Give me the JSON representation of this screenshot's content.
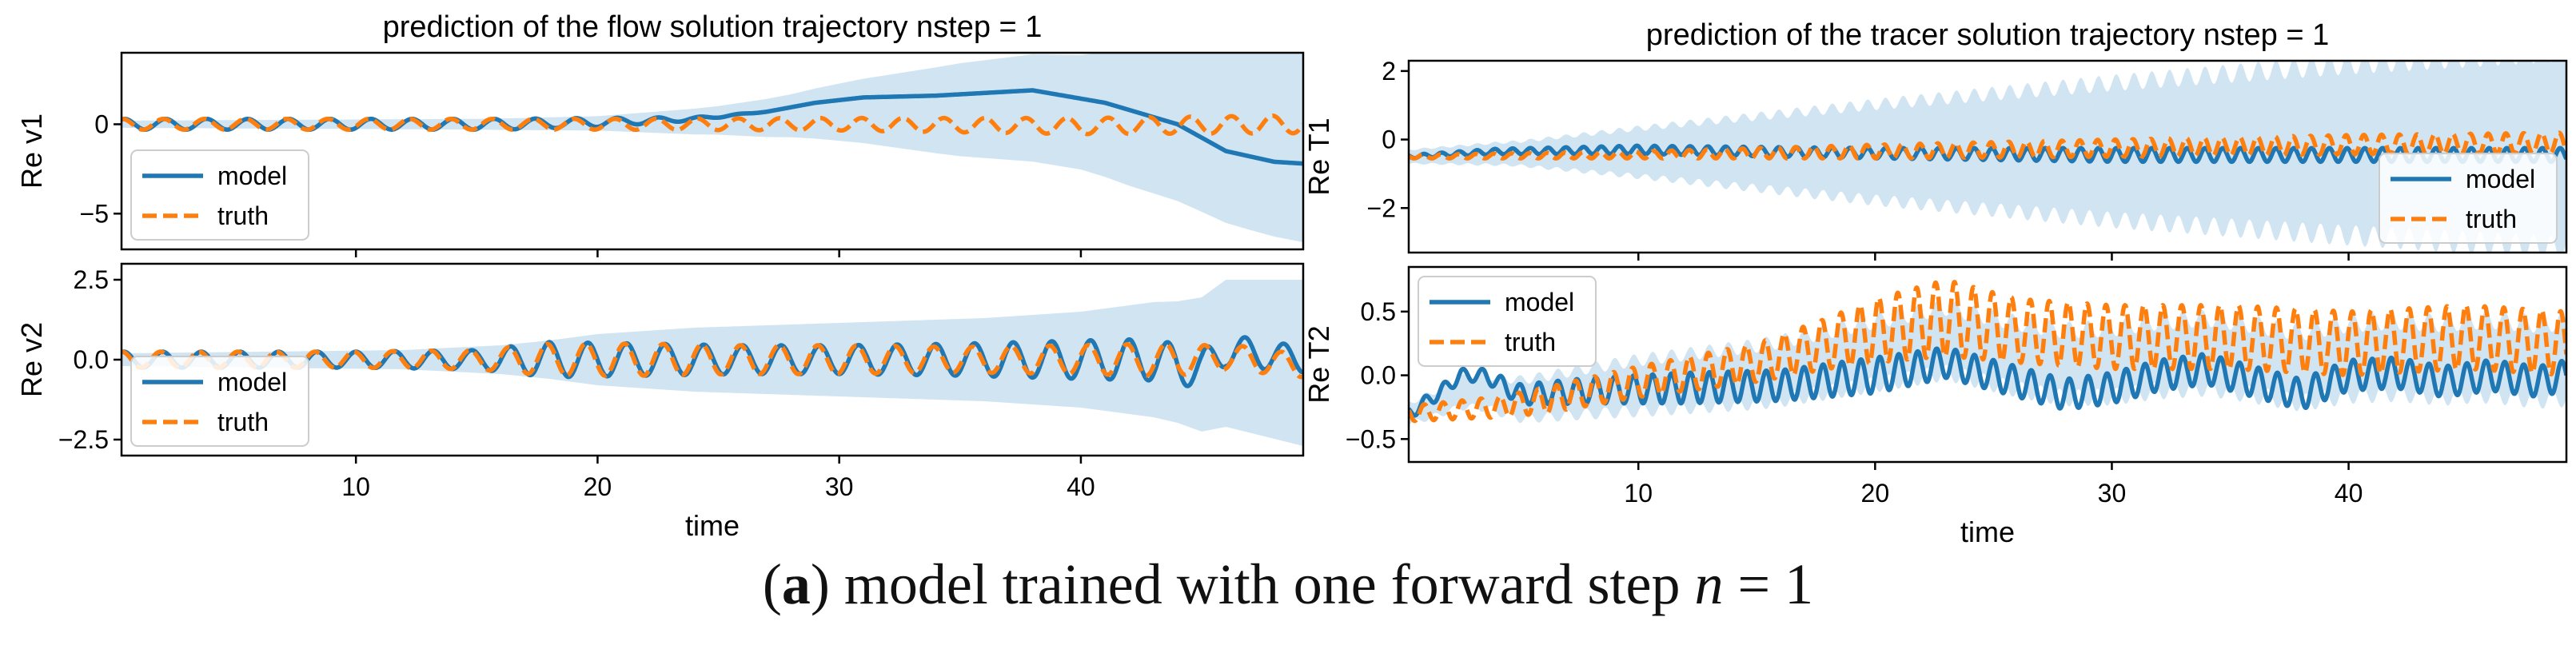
{
  "caption": {
    "open": "(",
    "label": "a",
    "close": ")",
    "text": " model trained with one forward step ",
    "var": "n",
    "eq": " = 1"
  },
  "colors": {
    "model": "#1f77b4",
    "truth": "#ff7f0e",
    "band": "#c9dff0"
  },
  "chart_data": [
    {
      "type": "line",
      "title": "prediction of the flow solution trajectory  nstep = 1",
      "xlabel": "",
      "ylabel": "Re v1",
      "xlim": [
        0.3,
        49.2
      ],
      "ylim": [
        -7.0,
        4.0
      ],
      "xticks": [
        10,
        20,
        30,
        40
      ],
      "xtick_labels_visible": false,
      "yticks": [
        -5,
        0
      ],
      "ytick_labels": [
        "−5",
        "0"
      ],
      "legend": {
        "placement": "lower-left",
        "entries": [
          "model",
          "truth"
        ]
      },
      "series": [
        {
          "name": "model",
          "style": "solid",
          "x": [
            0.3,
            4,
            8,
            12,
            16,
            20,
            24,
            27,
            29,
            31,
            34,
            38,
            41,
            44,
            46,
            48,
            49.2
          ],
          "y": [
            0,
            0,
            0,
            0,
            0,
            0.1,
            0.3,
            0.7,
            1.2,
            1.5,
            1.6,
            1.9,
            1.2,
            0,
            -1.5,
            -2.1,
            -2.2
          ],
          "osc": {
            "amp": [
              0.3,
              0.3,
              0.3,
              0.3,
              0.3,
              0.25,
              0.1,
              0,
              0,
              0,
              0,
              0,
              0,
              0,
              0,
              0,
              0
            ],
            "period": 1.7
          }
        },
        {
          "name": "truth",
          "style": "dashed",
          "x": [
            0.3,
            10,
            20,
            30,
            40,
            49.2
          ],
          "y": [
            0,
            0,
            0,
            0,
            -0.1,
            0
          ],
          "osc": {
            "amp": [
              0.3,
              0.3,
              0.3,
              0.35,
              0.45,
              0.5
            ],
            "period": 1.7
          }
        }
      ],
      "band": {
        "x": [
          0.3,
          15,
          20,
          25,
          28,
          30,
          32,
          35,
          38,
          40,
          42,
          45,
          47,
          49.2
        ],
        "halfwidth": [
          0.2,
          0.3,
          0.4,
          0.8,
          1.2,
          1.6,
          2.0,
          2.6,
          3.0,
          3.2,
          3.8,
          4.5,
          5.0,
          5.5
        ]
      }
    },
    {
      "type": "line",
      "title": "",
      "xlabel": "time",
      "ylabel": "Re v2",
      "xlim": [
        0.3,
        49.2
      ],
      "ylim": [
        -3.0,
        3.0
      ],
      "xticks": [
        10,
        20,
        30,
        40
      ],
      "xtick_labels": [
        "10",
        "20",
        "30",
        "40"
      ],
      "yticks": [
        -2.5,
        0.0,
        2.5
      ],
      "ytick_labels": [
        "−2.5",
        "0.0",
        "2.5"
      ],
      "legend": {
        "placement": "lower-left",
        "entries": [
          "model",
          "truth"
        ]
      },
      "series": [
        {
          "name": "model",
          "style": "solid",
          "x": [
            0.3,
            10,
            15,
            18,
            22,
            26,
            30,
            35,
            40,
            43,
            45,
            46,
            49.2
          ],
          "y": [
            0,
            0,
            0,
            0,
            0,
            0,
            0,
            0,
            0,
            0,
            -0.3,
            0.3,
            0
          ],
          "osc": {
            "amp": [
              0.25,
              0.25,
              0.3,
              0.55,
              0.5,
              0.45,
              0.45,
              0.5,
              0.6,
              0.65,
              0.6,
              0.5,
              0.4
            ],
            "period": 1.6
          }
        },
        {
          "name": "truth",
          "style": "dashed",
          "x": [
            0.3,
            10,
            15,
            18,
            22,
            26,
            30,
            35,
            40,
            43,
            45,
            46,
            49.2
          ],
          "y": [
            0,
            0,
            0,
            0,
            0,
            0,
            0,
            0,
            0,
            0,
            0,
            0.1,
            -0.2
          ],
          "osc": {
            "amp": [
              0.25,
              0.25,
              0.3,
              0.5,
              0.5,
              0.45,
              0.45,
              0.4,
              0.45,
              0.5,
              0.45,
              0.4,
              0.35
            ],
            "period": 1.6
          }
        }
      ],
      "band": {
        "x": [
          0.3,
          12,
          16,
          18,
          20,
          24,
          28,
          32,
          36,
          40,
          44,
          46,
          49.2
        ],
        "halfwidth": [
          0.2,
          0.3,
          0.45,
          0.6,
          0.8,
          1.0,
          1.1,
          1.2,
          1.3,
          1.5,
          1.9,
          2.3,
          2.6
        ]
      }
    },
    {
      "type": "line",
      "title": "prediction of the tracer solution trajectory  nstep = 1",
      "xlabel": "",
      "ylabel": "Re T1",
      "xlim": [
        0.3,
        49.2
      ],
      "ylim": [
        -3.3,
        2.3
      ],
      "xticks": [
        10,
        20,
        30,
        40
      ],
      "xtick_labels_visible": false,
      "yticks": [
        -2,
        0,
        2
      ],
      "ytick_labels": [
        "−2",
        "0",
        "2"
      ],
      "legend": {
        "placement": "lower-right",
        "entries": [
          "model",
          "truth"
        ]
      },
      "series": [
        {
          "name": "model",
          "style": "solid",
          "x": [
            0.3,
            4,
            10,
            20,
            30,
            40,
            49.2
          ],
          "y": [
            -0.5,
            -0.35,
            -0.3,
            -0.4,
            -0.45,
            -0.45,
            -0.45
          ],
          "osc": {
            "amp": [
              0.05,
              0.08,
              0.12,
              0.15,
              0.2,
              0.2,
              0.2
            ],
            "period": 0.75
          }
        },
        {
          "name": "truth",
          "style": "dashed",
          "x": [
            0.3,
            10,
            20,
            30,
            40,
            49.2
          ],
          "y": [
            -0.5,
            -0.45,
            -0.35,
            -0.25,
            -0.15,
            -0.1
          ],
          "osc": {
            "amp": [
              0.05,
              0.1,
              0.2,
              0.25,
              0.28,
              0.3
            ],
            "period": 0.75
          }
        }
      ],
      "band": {
        "x": [
          0.3,
          5,
          10,
          20,
          30,
          40,
          49.2
        ],
        "halfwidth": [
          0.2,
          0.35,
          0.7,
          1.4,
          2.0,
          2.5,
          2.9
        ],
        "osc_frac": 0.12,
        "period": 0.75
      }
    },
    {
      "type": "line",
      "title": "",
      "xlabel": "time",
      "ylabel": "Re T2",
      "xlim": [
        0.3,
        49.2
      ],
      "ylim": [
        -0.68,
        0.85
      ],
      "xticks": [
        10,
        20,
        30,
        40
      ],
      "xtick_labels": [
        "10",
        "20",
        "30",
        "40"
      ],
      "yticks": [
        -0.5,
        0.0,
        0.5
      ],
      "ytick_labels": [
        "−0.5",
        "0.0",
        "0.5"
      ],
      "legend": {
        "placement": "upper-left",
        "entries": [
          "model",
          "truth"
        ]
      },
      "series": [
        {
          "name": "model",
          "style": "solid",
          "x": [
            0.3,
            1.5,
            2.5,
            3.5,
            5,
            8,
            12,
            16,
            20,
            23,
            26,
            28,
            30,
            32,
            34,
            36,
            38,
            40,
            42,
            44,
            46,
            48,
            49.2
          ],
          "y": [
            -0.3,
            -0.15,
            0,
            0,
            -0.15,
            -0.12,
            -0.1,
            -0.08,
            0,
            0.1,
            -0.05,
            -0.15,
            -0.1,
            0,
            0.05,
            -0.05,
            -0.15,
            0,
            0.02,
            -0.05,
            0,
            -0.05,
            0
          ],
          "osc": {
            "amp": [
              0.05,
              0.05,
              0.05,
              0.05,
              0.08,
              0.1,
              0.12,
              0.12,
              0.14,
              0.12,
              0.12,
              0.12,
              0.12,
              0.12,
              0.12,
              0.12,
              0.12,
              0.12,
              0.12,
              0.12,
              0.12,
              0.12,
              0.12
            ],
            "period": 0.8
          }
        },
        {
          "name": "truth",
          "style": "dashed",
          "x": [
            0.3,
            4,
            6,
            10,
            15,
            18,
            20,
            23,
            26,
            30,
            35,
            40,
            45,
            49.2
          ],
          "y": [
            -0.3,
            -0.25,
            -0.2,
            -0.05,
            0.1,
            0.25,
            0.35,
            0.45,
            0.35,
            0.3,
            0.3,
            0.25,
            0.3,
            0.25
          ],
          "osc": {
            "amp": [
              0.06,
              0.08,
              0.1,
              0.12,
              0.15,
              0.2,
              0.25,
              0.3,
              0.25,
              0.25,
              0.25,
              0.25,
              0.25,
              0.25
            ],
            "period": 0.8
          }
        }
      ],
      "band": {
        "x": [
          0.3,
          5,
          10,
          20,
          30,
          40,
          49.2
        ],
        "halfwidth": [
          0.08,
          0.15,
          0.2,
          0.25,
          0.27,
          0.28,
          0.3
        ],
        "osc_frac": 0.25,
        "period": 0.8
      }
    }
  ]
}
